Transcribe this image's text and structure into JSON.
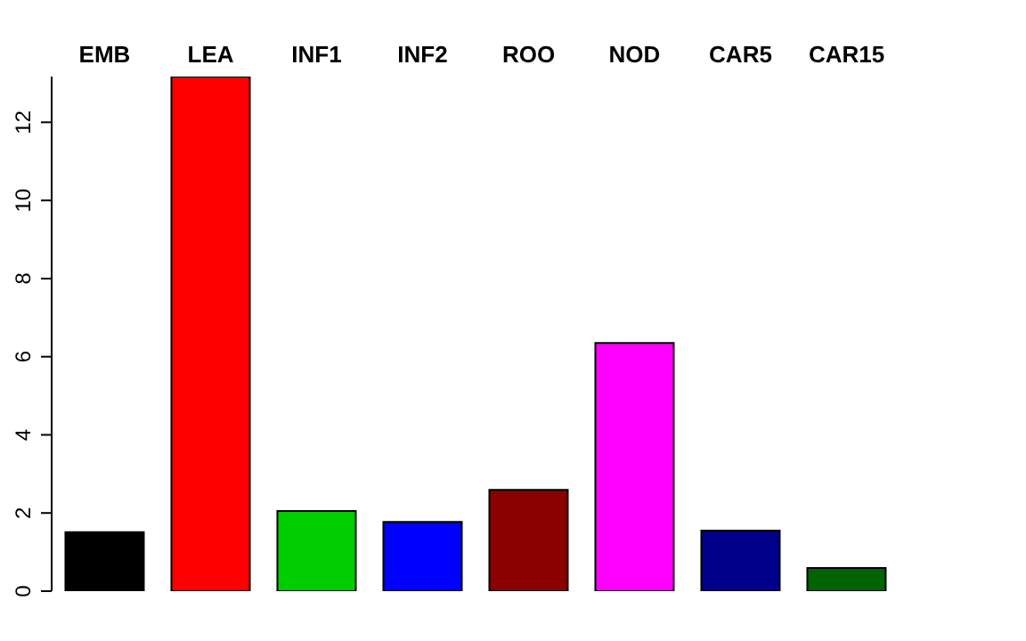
{
  "chart_data": {
    "type": "bar",
    "categories": [
      "EMB",
      "LEA",
      "INF1",
      "INF2",
      "ROO",
      "NOD",
      "CAR5",
      "CAR15"
    ],
    "values": [
      1.51,
      13.17,
      2.05,
      1.77,
      2.59,
      6.35,
      1.55,
      0.59
    ],
    "colors": [
      "#000000",
      "#ff0000",
      "#00cd00",
      "#0000ff",
      "#8b0000",
      "#ff00ff",
      "#00008b",
      "#006400"
    ],
    "ylim": [
      0,
      13.17
    ],
    "yticks": [
      0,
      2,
      4,
      6,
      8,
      10,
      12
    ],
    "grid": false,
    "legend": false
  }
}
